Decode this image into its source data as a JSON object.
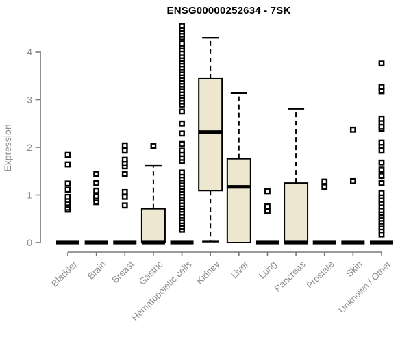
{
  "title": "ENSG00000252634 - 7SK",
  "chart_data": {
    "type": "boxplot",
    "title": "ENSG00000252634 - 7SK",
    "ylabel": "Expression",
    "xlabel": "",
    "ylim": [
      0,
      4.6
    ],
    "yticks": [
      0,
      1,
      2,
      3,
      4
    ],
    "grid": false,
    "legend": "none",
    "categories": [
      "Bladder",
      "Brain",
      "Breast",
      "Gastric",
      "Hematopoietic cells",
      "Kidney",
      "Liver",
      "Lung",
      "Pancreas",
      "Prostate",
      "Skin",
      "Unknown / Other"
    ],
    "series": [
      {
        "name": "Bladder",
        "whisker_low": 0,
        "q1": 0,
        "median": 0,
        "q3": 0,
        "whisker_high": 0,
        "outliers": [
          0.69,
          0.73,
          0.79,
          0.83,
          0.89,
          0.96,
          1.11,
          1.24,
          1.64,
          1.84
        ]
      },
      {
        "name": "Brain",
        "whisker_low": 0,
        "q1": 0,
        "median": 0,
        "q3": 0,
        "whisker_high": 0,
        "outliers": [
          0.85,
          0.93,
          0.97,
          1.09,
          1.25,
          1.44
        ]
      },
      {
        "name": "Breast",
        "whisker_low": 0,
        "q1": 0,
        "median": 0,
        "q3": 0,
        "whisker_high": 0,
        "outliers": [
          0.78,
          0.96,
          1.06,
          1.44,
          1.6,
          1.66,
          1.74,
          1.93,
          2.04
        ]
      },
      {
        "name": "Gastric",
        "whisker_low": 0,
        "q1": 0,
        "median": 0,
        "q3": 0.71,
        "whisker_high": 1.61,
        "outliers": [
          2.03
        ]
      },
      {
        "name": "Hematopoietic cells",
        "whisker_low": 0,
        "q1": 0,
        "median": 0,
        "q3": 0,
        "whisker_high": 0,
        "outliers": [
          0.27,
          0.33,
          0.39,
          0.45,
          0.51,
          0.57,
          0.63,
          0.69,
          0.75,
          0.81,
          0.87,
          0.93,
          0.99,
          1.05,
          1.11,
          1.17,
          1.23,
          1.29,
          1.35,
          1.41,
          1.47,
          1.71,
          1.78,
          1.86,
          1.93,
          2.07,
          2.29,
          2.5,
          2.75,
          2.9,
          2.96,
          3.02,
          3.08,
          3.14,
          3.2,
          3.26,
          3.32,
          3.38,
          3.44,
          3.5,
          3.56,
          3.62,
          3.68,
          3.74,
          3.8,
          3.86,
          3.92,
          3.98,
          4.06,
          4.12,
          4.18,
          4.31,
          4.37,
          4.43,
          4.49,
          4.55
        ]
      },
      {
        "name": "Kidney",
        "whisker_low": 0.02,
        "q1": 1.09,
        "median": 2.32,
        "q3": 3.44,
        "whisker_high": 4.3,
        "outliers": []
      },
      {
        "name": "Liver",
        "whisker_low": 0,
        "q1": 0,
        "median": 1.17,
        "q3": 1.76,
        "whisker_high": 3.14,
        "outliers": []
      },
      {
        "name": "Lung",
        "whisker_low": 0,
        "q1": 0,
        "median": 0,
        "q3": 0,
        "whisker_high": 0,
        "outliers": [
          0.66,
          0.76,
          1.08
        ]
      },
      {
        "name": "Pancreas",
        "whisker_low": 0,
        "q1": 0,
        "median": 0,
        "q3": 1.25,
        "whisker_high": 2.81,
        "outliers": []
      },
      {
        "name": "Prostate",
        "whisker_low": 0,
        "q1": 0,
        "median": 0,
        "q3": 0,
        "whisker_high": 0,
        "outliers": [
          1.17,
          1.28
        ]
      },
      {
        "name": "Skin",
        "whisker_low": 0,
        "q1": 0,
        "median": 0,
        "q3": 0,
        "whisker_high": 0,
        "outliers": [
          1.29,
          2.37
        ]
      },
      {
        "name": "Unknown / Other",
        "whisker_low": 0,
        "q1": 0,
        "median": 0,
        "q3": 0,
        "whisker_high": 0,
        "outliers": [
          0.17,
          0.26,
          0.32,
          0.38,
          0.44,
          0.5,
          0.56,
          0.62,
          0.68,
          0.76,
          0.83,
          0.9,
          0.97,
          1.04,
          1.25,
          1.4,
          1.53,
          1.68,
          1.93,
          2.03,
          2.1,
          2.39,
          2.43,
          2.52,
          2.6,
          3.18,
          3.27,
          3.76
        ]
      }
    ],
    "colors": {
      "box_fill": "#ece7ce",
      "box_stroke": "#000000",
      "median": "#000000",
      "outlier": "#000000",
      "axis": "#787878",
      "tick_label": "#8c8c8c",
      "title": "#000000"
    }
  }
}
